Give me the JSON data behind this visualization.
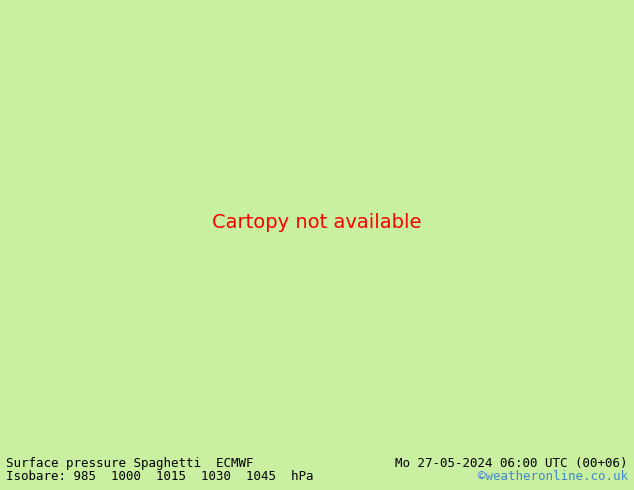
{
  "title_left": "Surface pressure Spaghetti  ECMWF",
  "title_right": "Mo 27-05-2024 06:00 UTC (00+06)",
  "isobar_label": "Isobare: 985  1000  1015  1030  1045  hPa",
  "watermark": "©weatheronline.co.uk",
  "bg_color": "#c8f0a0",
  "land_color": "#e0e0e0",
  "sea_color": "#c8f0a0",
  "border_color": "#aaaaaa",
  "bottom_bar_color": "#c8c8c8",
  "title_fontsize": 9,
  "watermark_color": "#4488cc",
  "fig_width": 6.34,
  "fig_height": 4.9,
  "dpi": 100,
  "lon_min": 18.0,
  "lon_max": 62.0,
  "lat_min": 27.0,
  "lat_max": 50.5,
  "member_colors": [
    "#333333",
    "#555555",
    "#777777",
    "#999999",
    "#bbbbbb",
    "#0000cc",
    "#0033ff",
    "#0066ff",
    "#0099ff",
    "#00ccff",
    "#00ffff",
    "#00ffcc",
    "#00ff99",
    "#00ff66",
    "#00ff33",
    "#00ff00",
    "#33ff00",
    "#66ff00",
    "#99ff00",
    "#ccff00",
    "#ffff00",
    "#ffcc00",
    "#ff9900",
    "#ff6600",
    "#ff3300",
    "#ff0000",
    "#ff0033",
    "#ff0066",
    "#ff0099",
    "#ff00cc",
    "#ff00ff",
    "#cc00ff",
    "#9900ff",
    "#6600ff",
    "#3300ff",
    "#0000ff",
    "#00cccc",
    "#cc00cc",
    "#cccc00",
    "#006666",
    "#660066",
    "#666600",
    "#004499",
    "#990044",
    "#449900",
    "#884400",
    "#448800",
    "#004488",
    "#880044",
    "#448844",
    "#ff8844"
  ],
  "line_width": 0.7
}
